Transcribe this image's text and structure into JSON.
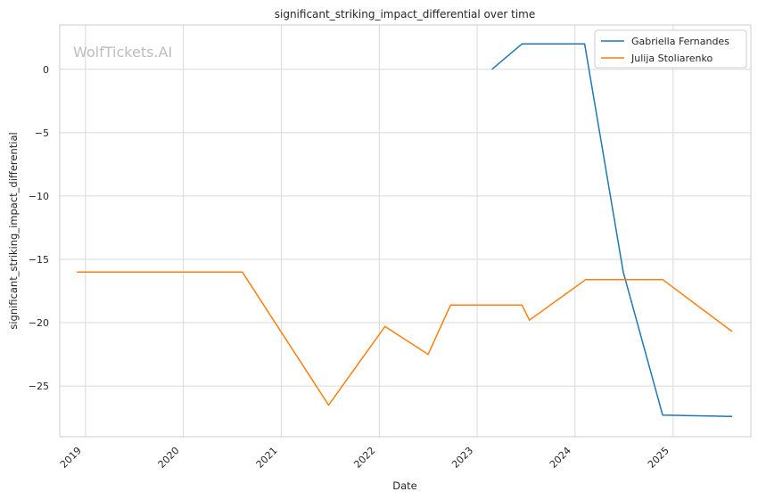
{
  "chart_data": {
    "type": "line",
    "title": "significant_striking_impact_differential over time",
    "xlabel": "Date",
    "ylabel": "significant_striking_impact_differential",
    "watermark": "WolfTickets.AI",
    "x_ticks": [
      "2019",
      "2020",
      "2021",
      "2022",
      "2023",
      "2024",
      "2025"
    ],
    "y_ticks": [
      "0",
      "−5",
      "−10",
      "−15",
      "−20",
      "−25"
    ],
    "y_tick_values": [
      0,
      -5,
      -10,
      -15,
      -20,
      -25
    ],
    "xlim": [
      "2018-09-27",
      "2025-10-18"
    ],
    "ylim": [
      -29.0,
      3.5
    ],
    "grid": true,
    "legend_position": "top-right",
    "series": [
      {
        "name": "Gabriella Fernandes",
        "color": "#1f77b4",
        "points": [
          {
            "x": "2023-02-25",
            "y": 0
          },
          {
            "x": "2023-06-17",
            "y": 2
          },
          {
            "x": "2024-02-06",
            "y": 2
          },
          {
            "x": "2024-06-29",
            "y": -16
          },
          {
            "x": "2024-11-23",
            "y": -27.3
          },
          {
            "x": "2025-08-09",
            "y": -27.4
          }
        ]
      },
      {
        "name": "Julija Stoliarenko",
        "color": "#ff7f0e",
        "points": [
          {
            "x": "2018-11-30",
            "y": -16
          },
          {
            "x": "2020-08-08",
            "y": -16
          },
          {
            "x": "2021-06-26",
            "y": -26.5
          },
          {
            "x": "2022-01-22",
            "y": -20.3
          },
          {
            "x": "2022-07-02",
            "y": -22.5
          },
          {
            "x": "2022-09-24",
            "y": -18.6
          },
          {
            "x": "2023-06-17",
            "y": -18.6
          },
          {
            "x": "2023-07-15",
            "y": -19.8
          },
          {
            "x": "2024-02-10",
            "y": -16.6
          },
          {
            "x": "2024-11-23",
            "y": -16.6
          },
          {
            "x": "2025-08-09",
            "y": -20.7
          }
        ]
      }
    ]
  }
}
